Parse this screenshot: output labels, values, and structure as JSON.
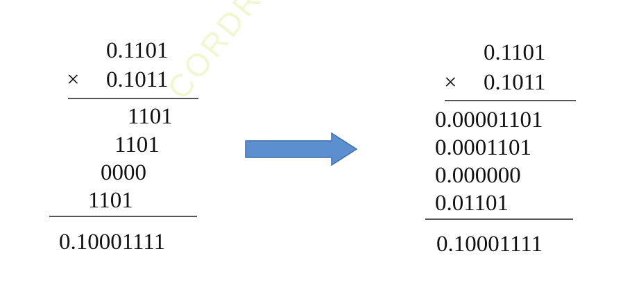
{
  "left": {
    "multiplicand": "0.1101",
    "times_sign": "×",
    "multiplier": "0.1011",
    "partial_products": [
      "1101",
      "1101",
      "0000",
      "1101"
    ],
    "result": "0.10001111"
  },
  "right": {
    "multiplicand": "0.1101",
    "times_sign": "×",
    "multiplier": "0.1011",
    "partial_products": [
      "0.00001101",
      "0.0001101",
      "0.000000",
      "0.01101"
    ],
    "result": "0.10001111"
  },
  "watermark": "CORDRCOM",
  "colors": {
    "arrow_fill": "#5b8fd0",
    "arrow_stroke": "#3f6fae",
    "rule": "#555555"
  }
}
